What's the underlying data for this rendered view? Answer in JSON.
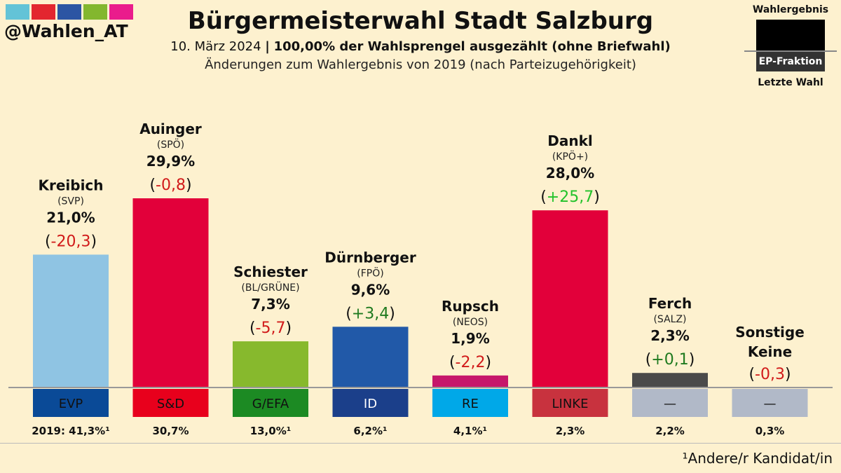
{
  "header": {
    "handle": "@Wahlen_AT",
    "title": "Bürgermeisterwahl Stadt Salzburg",
    "date": "10. März 2024",
    "separator": "|",
    "count_status": "100,00% der Wahlsprengel ausgezählt (ohne Briefwahl)",
    "changes_note": "Änderungen zum Wahlergebnis von 2019 (nach Parteizugehörigkeit)",
    "logo_colors": [
      "#63c3d7",
      "#e3262f",
      "#2c55a3",
      "#83b72e",
      "#ea1c8c"
    ]
  },
  "legend": {
    "top": "Wahlergebnis",
    "band": "EP-Fraktion",
    "bottom": "Letzte Wahl"
  },
  "footnote": "¹Andere/r Kandidat/in",
  "chart_data": {
    "type": "bar",
    "title": "Bürgermeisterwahl Stadt Salzburg",
    "unit": "%",
    "ylim": [
      0,
      30
    ],
    "categories": [
      "Kreibich",
      "Auinger",
      "Schiester",
      "Dürnberger",
      "Rupsch",
      "Dankl",
      "Ferch",
      "Sonstige"
    ],
    "bars": [
      {
        "name": "Kreibich",
        "party": "(SVP)",
        "value": 21.0,
        "value_label": "21,0%",
        "change": "-20,3",
        "change_sign": "neg",
        "group": "EVP",
        "group_color": "#0a4a97",
        "group_text": "#111111",
        "color": "#8fc4e3",
        "last": "2019: 41,3%¹"
      },
      {
        "name": "Auinger",
        "party": "(SPÖ)",
        "value": 29.9,
        "value_label": "29,9%",
        "change": "-0,8",
        "change_sign": "neg",
        "group": "S&D",
        "group_color": "#e8001c",
        "group_text": "#111111",
        "color": "#e2003a",
        "last": "30,7%"
      },
      {
        "name": "Schiester",
        "party": "(BL/GRÜNE)",
        "value": 7.3,
        "value_label": "7,3%",
        "change": "-5,7",
        "change_sign": "neg",
        "group": "G/EFA",
        "group_color": "#1c8a23",
        "group_text": "#111111",
        "color": "#87b92d",
        "last": "13,0%¹"
      },
      {
        "name": "Dürnberger",
        "party": "(FPÖ)",
        "value": 9.6,
        "value_label": "9,6%",
        "change": "+3,4",
        "change_sign": "pos",
        "group": "ID",
        "group_color": "#1b3f8a",
        "group_text": "#ffffff",
        "color": "#2159a8",
        "last": "6,2%¹"
      },
      {
        "name": "Rupsch",
        "party": "(NEOS)",
        "value": 1.9,
        "value_label": "1,9%",
        "change": "-2,2",
        "change_sign": "neg",
        "group": "RE",
        "group_color": "#00a8e8",
        "group_text": "#111111",
        "color": "#c6176b",
        "last": "4,1%¹"
      },
      {
        "name": "Dankl",
        "party": "(KPÖ+)",
        "value": 28.0,
        "value_label": "28,0%",
        "change": "+25,7",
        "change_sign": "pos_bright",
        "group": "LINKE",
        "group_color": "#c8323e",
        "group_text": "#111111",
        "color": "#e2003a",
        "last": "2,3%"
      },
      {
        "name": "Ferch",
        "party": "(SALZ)",
        "value": 2.3,
        "value_label": "2,3%",
        "change": "+0,1",
        "change_sign": "pos",
        "group": "—",
        "group_color": "#b1b9c8",
        "group_text": "#111111",
        "color": "#4a4a4a",
        "last": "2,2%"
      },
      {
        "name": "Sonstige",
        "name2": "Keine",
        "party": "",
        "value": 0,
        "value_label": "",
        "change": "-0,3",
        "change_sign": "neg",
        "group": "—",
        "group_color": "#b1b9c8",
        "group_text": "#111111",
        "color": "#4a4a4a",
        "last": "0,3%"
      }
    ],
    "colors": {
      "neg": "#d11a1a",
      "pos": "#1f7a1f",
      "pos_bright": "#22c22a"
    }
  }
}
